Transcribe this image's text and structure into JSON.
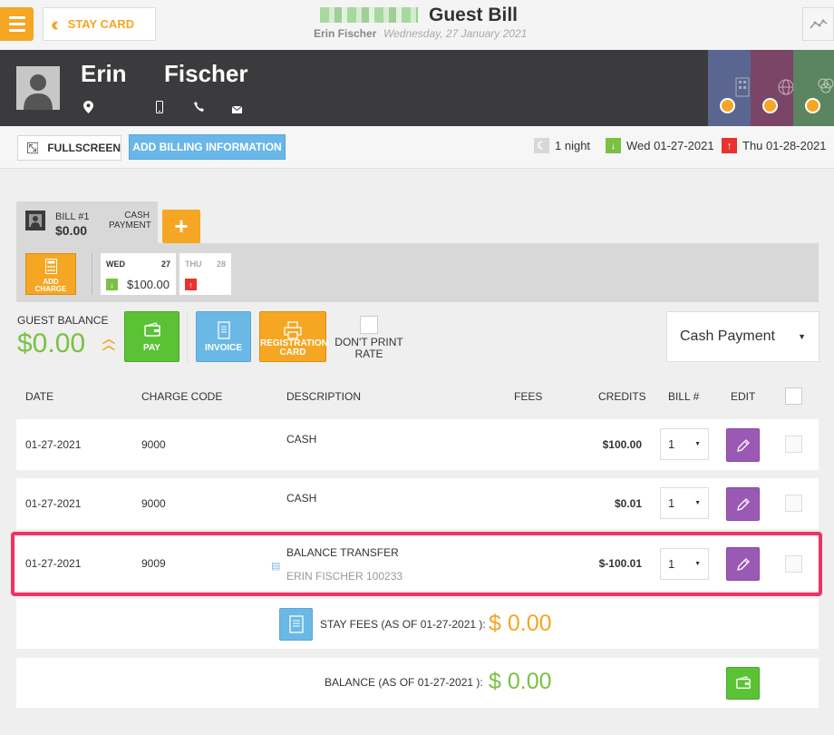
{
  "header": {
    "back_label": "STAY CARD",
    "title": "Guest Bill",
    "guest_name": "Erin Fischer",
    "date": "Wednesday, 27 January 2021"
  },
  "guest": {
    "first_name": "Erin",
    "last_name": "Fischer"
  },
  "toolbar": {
    "fullscreen_label": "FULLSCREEN",
    "billing_label": "ADD BILLING INFORMATION",
    "nights": "1 night",
    "arrival": "Wed 01-27-2021",
    "departure": "Thu 01-28-2021"
  },
  "bill": {
    "number": "BILL #1",
    "amount": "$0.00",
    "method": "CASH PAYMENT",
    "add_charge": "ADD CHARGE",
    "days": [
      {
        "name": "WED",
        "date": "27",
        "amount": "$100.00"
      },
      {
        "name": "THU",
        "date": "28",
        "amount": ""
      }
    ]
  },
  "balance": {
    "label": "GUEST BALANCE",
    "value": "$0.00",
    "pay_label": "PAY",
    "invoice_label": "INVOICE",
    "registration_label": "REGISTRATION CARD",
    "dont_print_label": "DON'T PRINT RATE",
    "payment_method": "Cash Payment"
  },
  "table": {
    "headers": [
      "DATE",
      "CHARGE CODE",
      "DESCRIPTION",
      "FEES",
      "CREDITS",
      "BILL #",
      "EDIT"
    ],
    "rows": [
      {
        "date": "01-27-2021",
        "code": "9000",
        "description": "CASH",
        "sub": "",
        "fees": "",
        "credits": "$100.00",
        "bill": "1"
      },
      {
        "date": "01-27-2021",
        "code": "9000",
        "description": "CASH",
        "sub": "",
        "fees": "",
        "credits": "$0.01",
        "bill": "1"
      },
      {
        "date": "01-27-2021",
        "code": "9009",
        "description": "BALANCE TRANSFER",
        "sub": "ERIN FISCHER 100233",
        "fees": "",
        "credits": "$-100.01",
        "bill": "1"
      }
    ]
  },
  "summary": {
    "stay_fees_label": "STAY FEES (AS OF 01-27-2021 ):",
    "stay_fees_value": "$ 0.00",
    "balance_label": "BALANCE (AS OF 01-27-2021 ):",
    "balance_value": "$ 0.00"
  },
  "colors": {
    "accent_orange": "#f5a623",
    "green": "#7ac143",
    "purple": "#9b59b6",
    "blue": "#69b6e8",
    "highlight": "#ee3366",
    "header_dark": "#3b3b3d"
  }
}
